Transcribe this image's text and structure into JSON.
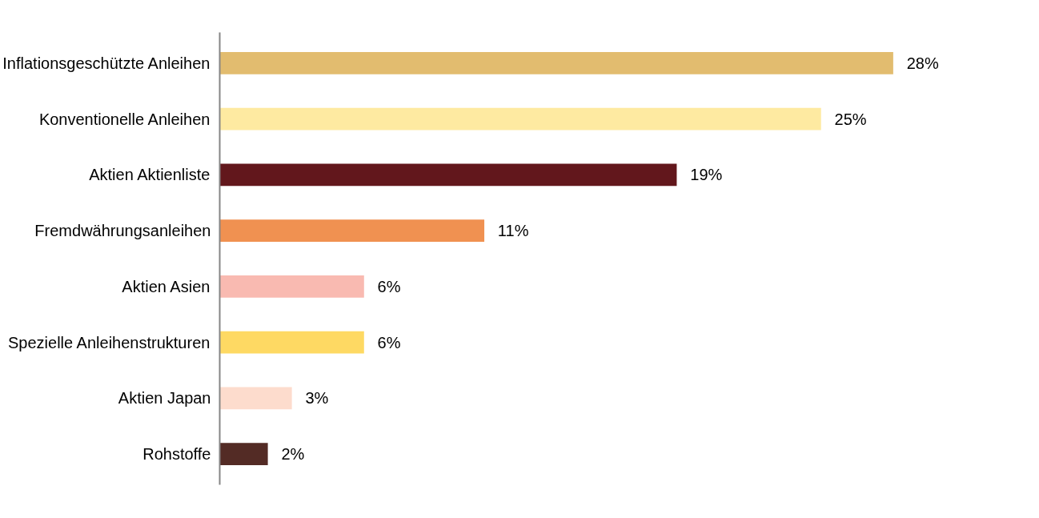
{
  "chart_data": {
    "type": "bar",
    "orientation": "horizontal",
    "categories": [
      "Inflationsgeschützte Anleihen",
      "Konventionelle Anleihen",
      "Aktien Aktienliste",
      "Fremdwährungsanleihen",
      "Aktien Asien",
      "Spezielle Anleihenstrukturen",
      "Aktien Japan",
      "Rohstoffe"
    ],
    "values": [
      28,
      25,
      19,
      11,
      6,
      6,
      3,
      2
    ],
    "value_labels": [
      "28%",
      "25%",
      "19%",
      "11%",
      "6%",
      "6%",
      "3%",
      "2%"
    ],
    "colors": [
      "#e2bc6f",
      "#feeaa1",
      "#62171c",
      "#f09151",
      "#f9bab1",
      "#fed963",
      "#fddccd",
      "#532b25"
    ],
    "grid": false
  }
}
